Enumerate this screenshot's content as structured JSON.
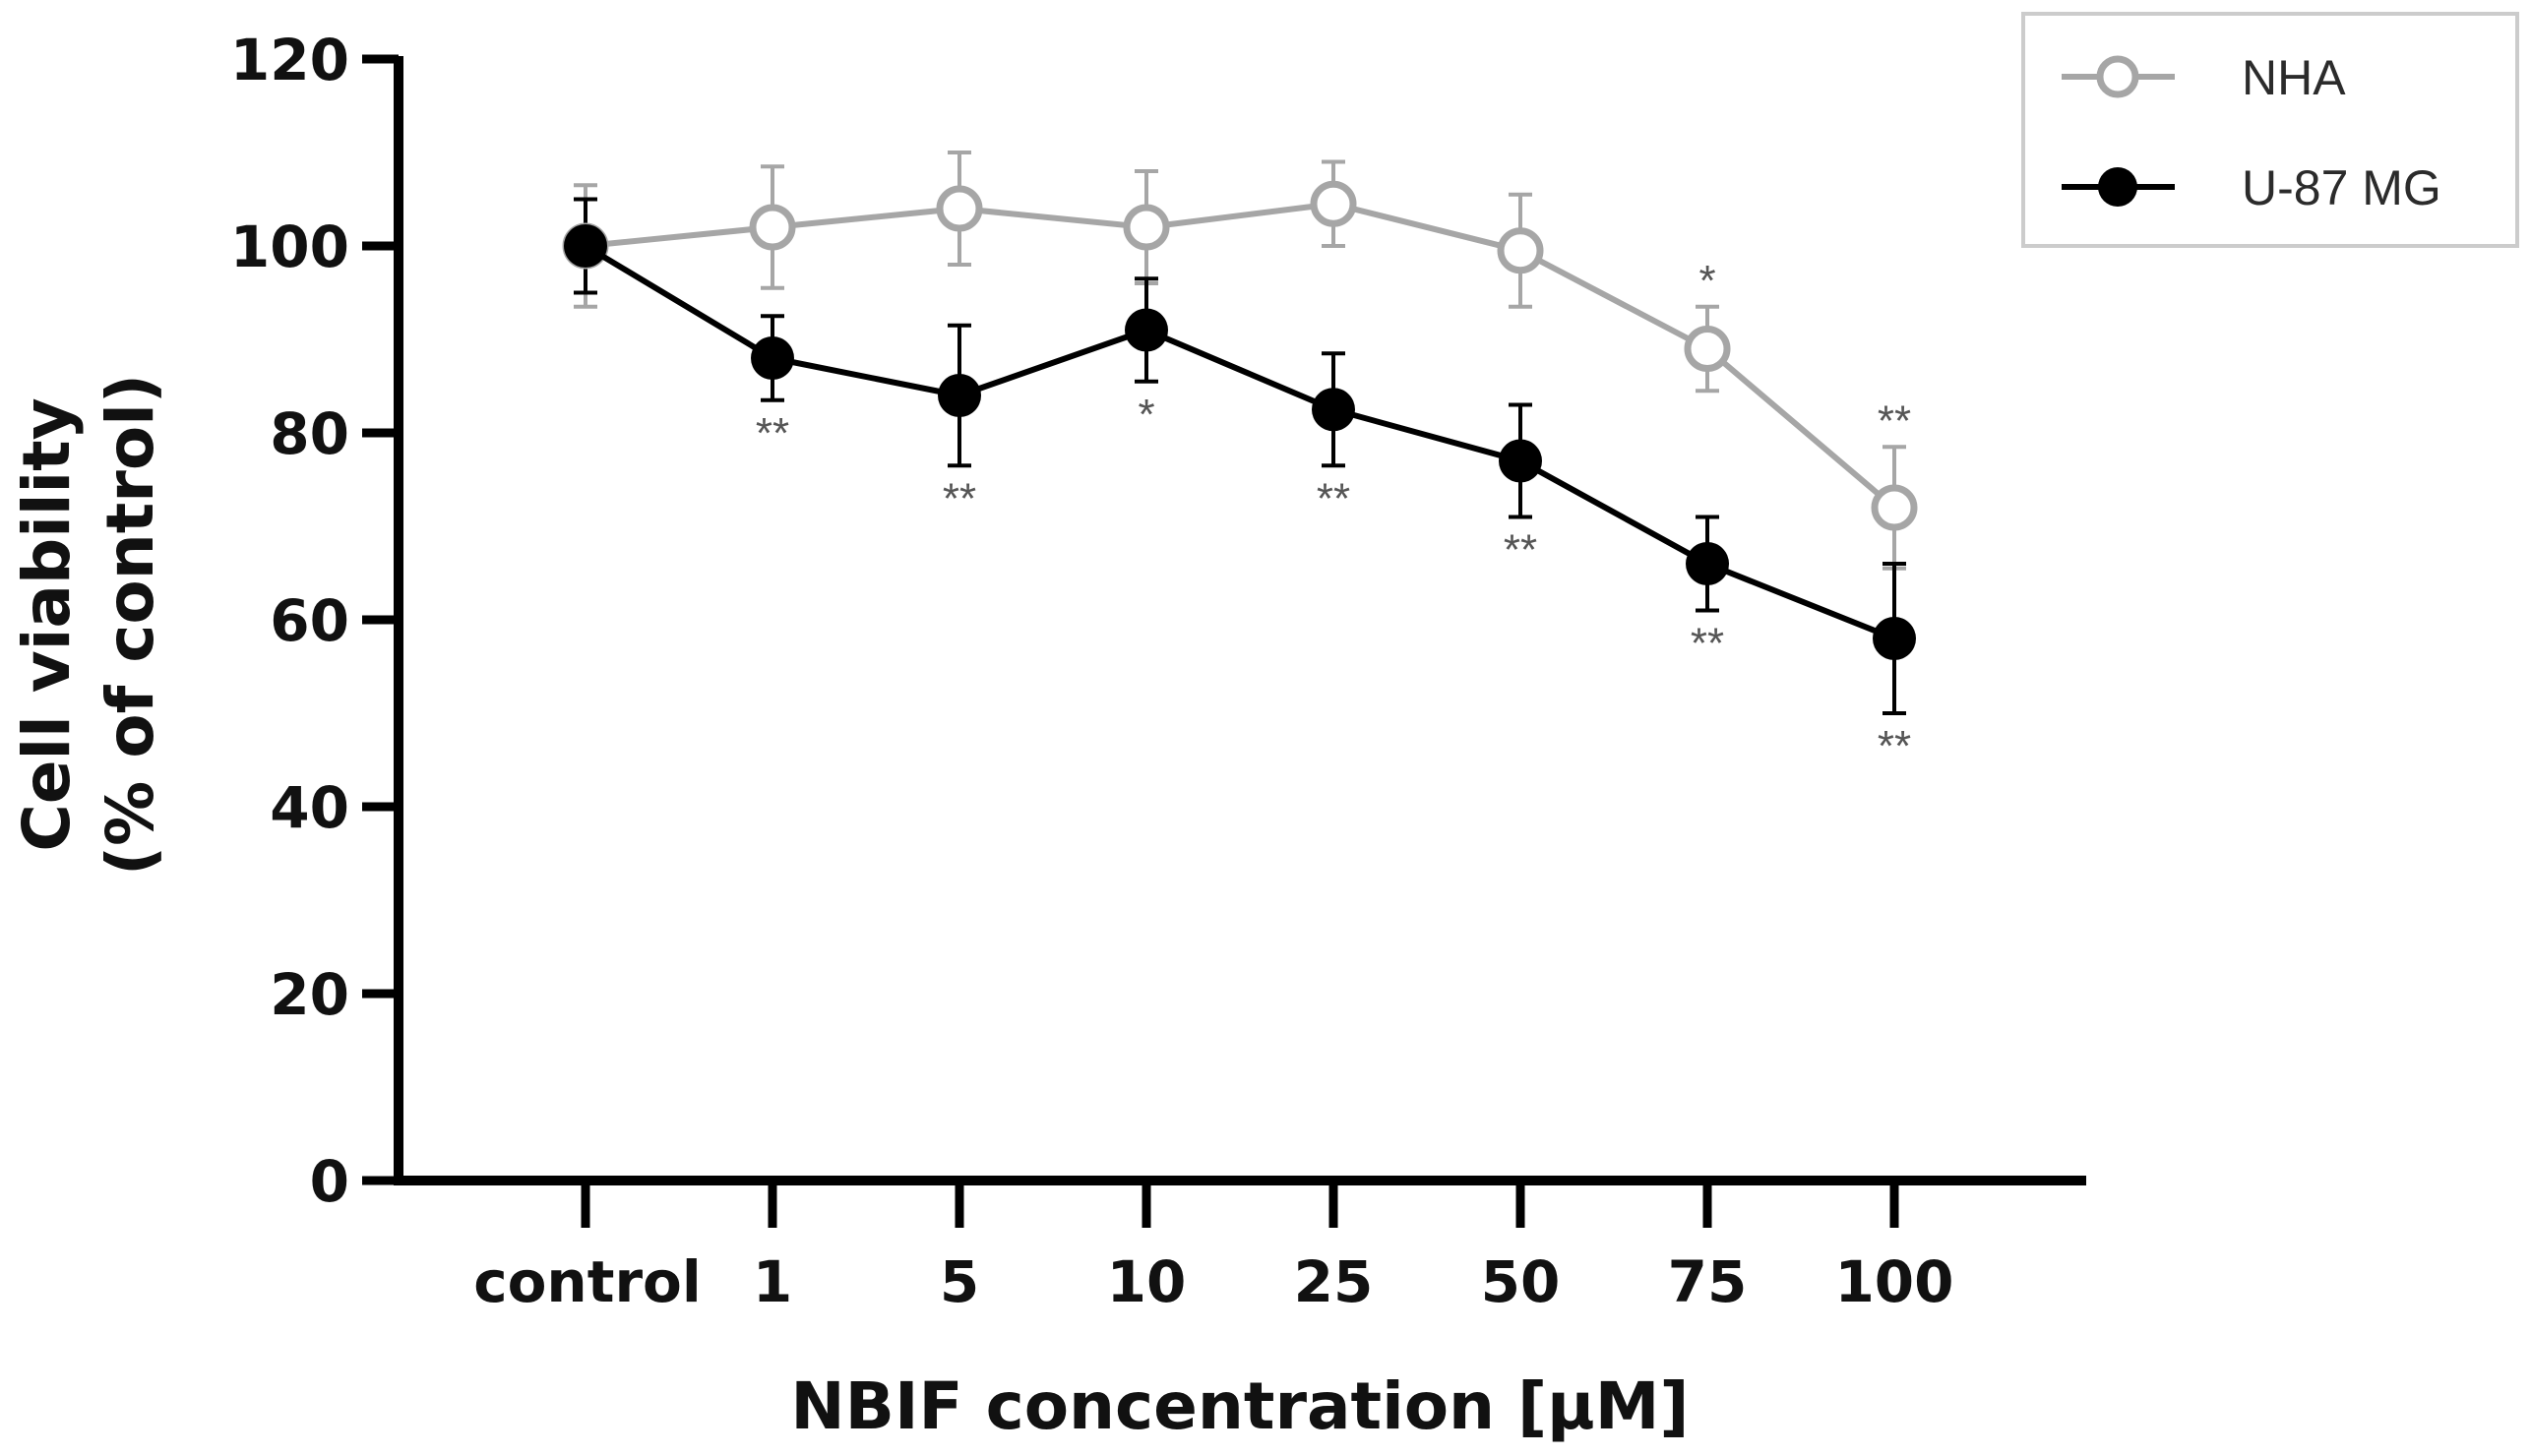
{
  "chart_data": {
    "type": "line",
    "xlabel": "NBIF concentration [μM]",
    "ylabel_line1": "Cell viability",
    "ylabel_line2": "(% of control)",
    "ylim": [
      0,
      120
    ],
    "yticks": [
      0,
      20,
      40,
      60,
      80,
      100,
      120
    ],
    "categories": [
      "control",
      "1",
      "5",
      "10",
      "25",
      "50",
      "75",
      "100"
    ],
    "series": [
      {
        "name": "NHA",
        "color": "#a6a6a6",
        "marker": "open-circle",
        "values": [
          100,
          102,
          104,
          102,
          104.5,
          99.5,
          89,
          72
        ],
        "errors": [
          6.5,
          6.5,
          6,
          6,
          4.5,
          6,
          4.5,
          6.5
        ],
        "significance": [
          "",
          "",
          "",
          "",
          "",
          "",
          "*",
          "**"
        ],
        "significance_position": "above"
      },
      {
        "name": "U-87 MG",
        "color": "#000000",
        "marker": "filled-circle",
        "values": [
          100,
          88,
          84,
          91,
          82.5,
          77,
          66,
          58
        ],
        "errors": [
          5,
          4.5,
          7.5,
          5.5,
          6,
          6,
          5,
          8
        ],
        "significance": [
          "",
          "**",
          "**",
          "*",
          "**",
          "**",
          "**",
          "**"
        ],
        "significance_position": "below"
      }
    ],
    "legend": {
      "position": "top-right",
      "entries": [
        "NHA",
        "U-87 MG"
      ]
    }
  }
}
